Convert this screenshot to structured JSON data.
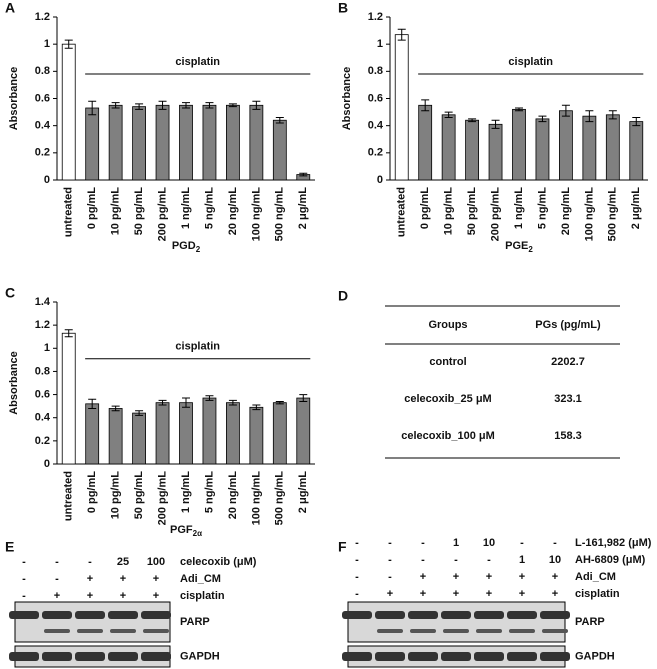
{
  "chart_data": [
    {
      "type": "bar",
      "panel_label": "A",
      "ylabel": "Absorbance",
      "xlabel": "PGD",
      "xlabel_sub": "2",
      "annotation": "cisplatin",
      "categories": [
        "untreated",
        "0 pg/mL",
        "10 pg/mL",
        "50 pg/mL",
        "200 pg/mL",
        "1 ng/mL",
        "5 ng/mL",
        "20 ng/mL",
        "100 ng/mL",
        "500 ng/mL",
        "2 μg/mL"
      ],
      "values": [
        1.0,
        0.53,
        0.55,
        0.54,
        0.55,
        0.55,
        0.55,
        0.55,
        0.55,
        0.44,
        0.04
      ],
      "errors": [
        0.03,
        0.05,
        0.02,
        0.02,
        0.03,
        0.02,
        0.02,
        0.01,
        0.03,
        0.02,
        0.01
      ],
      "colors": [
        "#ffffff",
        "#808080",
        "#808080",
        "#808080",
        "#808080",
        "#808080",
        "#808080",
        "#808080",
        "#808080",
        "#808080",
        "#808080"
      ],
      "ylim": [
        0,
        1.2
      ],
      "yticks": [
        0,
        0.2,
        0.4,
        0.6,
        0.8,
        1,
        1.2
      ]
    },
    {
      "type": "bar",
      "panel_label": "B",
      "ylabel": "Absorbance",
      "xlabel": "PGE",
      "xlabel_sub": "2",
      "annotation": "cisplatin",
      "categories": [
        "untreated",
        "0 pg/mL",
        "10 pg/mL",
        "50 pg/mL",
        "200 pg/mL",
        "1 ng/mL",
        "5 ng/mL",
        "20 ng/mL",
        "100 ng/mL",
        "500 ng/mL",
        "2 μg/mL"
      ],
      "values": [
        1.07,
        0.55,
        0.48,
        0.44,
        0.41,
        0.52,
        0.45,
        0.51,
        0.47,
        0.48,
        0.43
      ],
      "errors": [
        0.04,
        0.04,
        0.02,
        0.01,
        0.03,
        0.01,
        0.02,
        0.04,
        0.04,
        0.03,
        0.03
      ],
      "colors": [
        "#ffffff",
        "#808080",
        "#808080",
        "#808080",
        "#808080",
        "#808080",
        "#808080",
        "#808080",
        "#808080",
        "#808080",
        "#808080"
      ],
      "ylim": [
        0,
        1.2
      ],
      "yticks": [
        0,
        0.2,
        0.4,
        0.6,
        0.8,
        1,
        1.2
      ]
    },
    {
      "type": "bar",
      "panel_label": "C",
      "ylabel": "Absorbance",
      "xlabel": "PGF",
      "xlabel_sub": "2α",
      "annotation": "cisplatin",
      "categories": [
        "untreated",
        "0 pg/mL",
        "10 pg/mL",
        "50 pg/mL",
        "200 pg/mL",
        "1 ng/mL",
        "5 ng/mL",
        "20 ng/mL",
        "100 ng/mL",
        "500 ng/mL",
        "2 μg/mL"
      ],
      "values": [
        1.13,
        0.52,
        0.48,
        0.44,
        0.53,
        0.53,
        0.57,
        0.53,
        0.49,
        0.53,
        0.57
      ],
      "errors": [
        0.03,
        0.04,
        0.02,
        0.02,
        0.02,
        0.04,
        0.02,
        0.02,
        0.02,
        0.01,
        0.03
      ],
      "colors": [
        "#ffffff",
        "#808080",
        "#808080",
        "#808080",
        "#808080",
        "#808080",
        "#808080",
        "#808080",
        "#808080",
        "#808080",
        "#808080"
      ],
      "ylim": [
        0,
        1.4
      ],
      "yticks": [
        0,
        0.2,
        0.4,
        0.6,
        0.8,
        1,
        1.2,
        1.4
      ]
    }
  ],
  "table": {
    "panel_label": "D",
    "header": [
      "Groups",
      "PGs (pg/mL)"
    ],
    "rows": [
      [
        "control",
        "2202.7"
      ],
      [
        "celecoxib_25 μM",
        "323.1"
      ],
      [
        "celecoxib_100 μM",
        "158.3"
      ]
    ]
  },
  "blots": [
    {
      "panel_label": "E",
      "rows": [
        {
          "label": "celecoxib (μM)",
          "cells": [
            "-",
            "-",
            "-",
            "25",
            "100"
          ]
        },
        {
          "label": "Adi_CM",
          "cells": [
            "-",
            "-",
            "+",
            "+",
            "+"
          ]
        },
        {
          "label": "cisplatin",
          "cells": [
            "-",
            "+",
            "+",
            "+",
            "+"
          ]
        }
      ],
      "bands": [
        "PARP",
        "GAPDH"
      ]
    },
    {
      "panel_label": "F",
      "rows": [
        {
          "label": "L-161,982 (μM)",
          "cells": [
            "-",
            "-",
            "-",
            "1",
            "10",
            "-",
            "-"
          ]
        },
        {
          "label": "AH-6809 (μM)",
          "cells": [
            "-",
            "-",
            "-",
            "-",
            "-",
            "1",
            "10"
          ]
        },
        {
          "label": "Adi_CM",
          "cells": [
            "-",
            "-",
            "+",
            "+",
            "+",
            "+",
            "+"
          ]
        },
        {
          "label": "cisplatin",
          "cells": [
            "-",
            "+",
            "+",
            "+",
            "+",
            "+",
            "+"
          ]
        }
      ],
      "bands": [
        "PARP",
        "GAPDH"
      ]
    }
  ]
}
